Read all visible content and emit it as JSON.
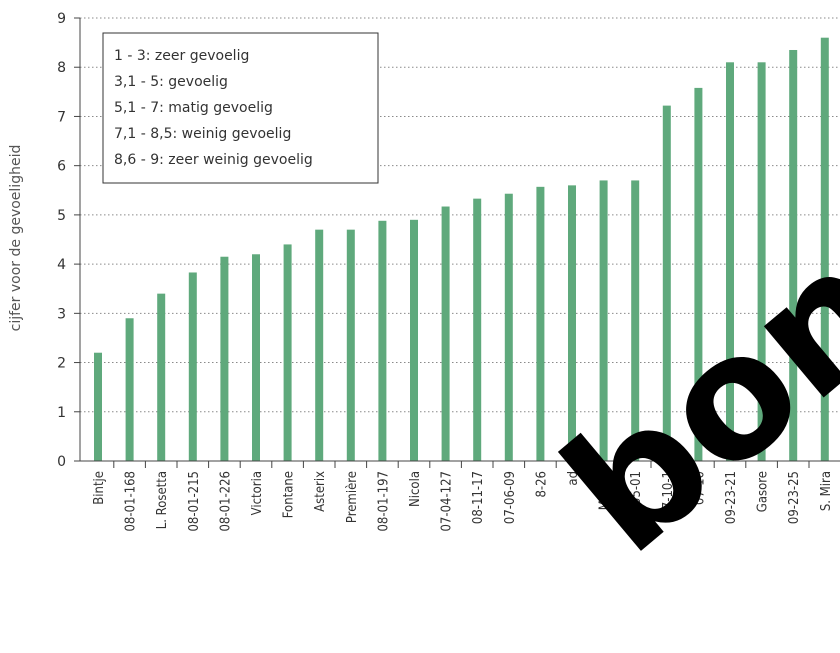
{
  "chart_data": {
    "type": "bar",
    "ylabel": "cijfer voor de gevoeligheid",
    "xlabel": "",
    "ylim": [
      0,
      9
    ],
    "yticks": [
      0,
      1,
      2,
      3,
      4,
      5,
      6,
      7,
      8,
      9
    ],
    "grid": "horizontal dotted",
    "bar_color": "#5fa97c",
    "categories": [
      "Bintje",
      "08-01-168",
      "L. Rosetta",
      "08-01-215",
      "08-01-226",
      "Victoria",
      "Fontane",
      "Asterix",
      "Première",
      "08-01-197",
      "Nicola",
      "07-04-127",
      "08-11-17",
      "07-06-09",
      "8-26",
      "ad",
      "Markie",
      "05-01",
      "07-10-1",
      "07-10",
      "09-23-21",
      "Gasore",
      "09-23-25",
      "S. Mira"
    ],
    "values": [
      2.2,
      2.9,
      3.4,
      3.83,
      4.15,
      4.2,
      4.4,
      4.7,
      4.7,
      4.88,
      4.9,
      5.17,
      5.33,
      5.43,
      5.57,
      5.6,
      5.7,
      5.7,
      7.22,
      7.58,
      8.1,
      8.1,
      8.35,
      8.6
    ],
    "legend": {
      "placement": "top-left",
      "entries": [
        "1 - 3: zeer gevoelig",
        "3,1 - 5: gevoelig",
        "5,1 - 7: matig gevoelig",
        "7,1 - 8,5: weinig gevoelig",
        "8,6 - 9: zeer weinig gevoelig"
      ]
    },
    "watermark": "bond"
  }
}
